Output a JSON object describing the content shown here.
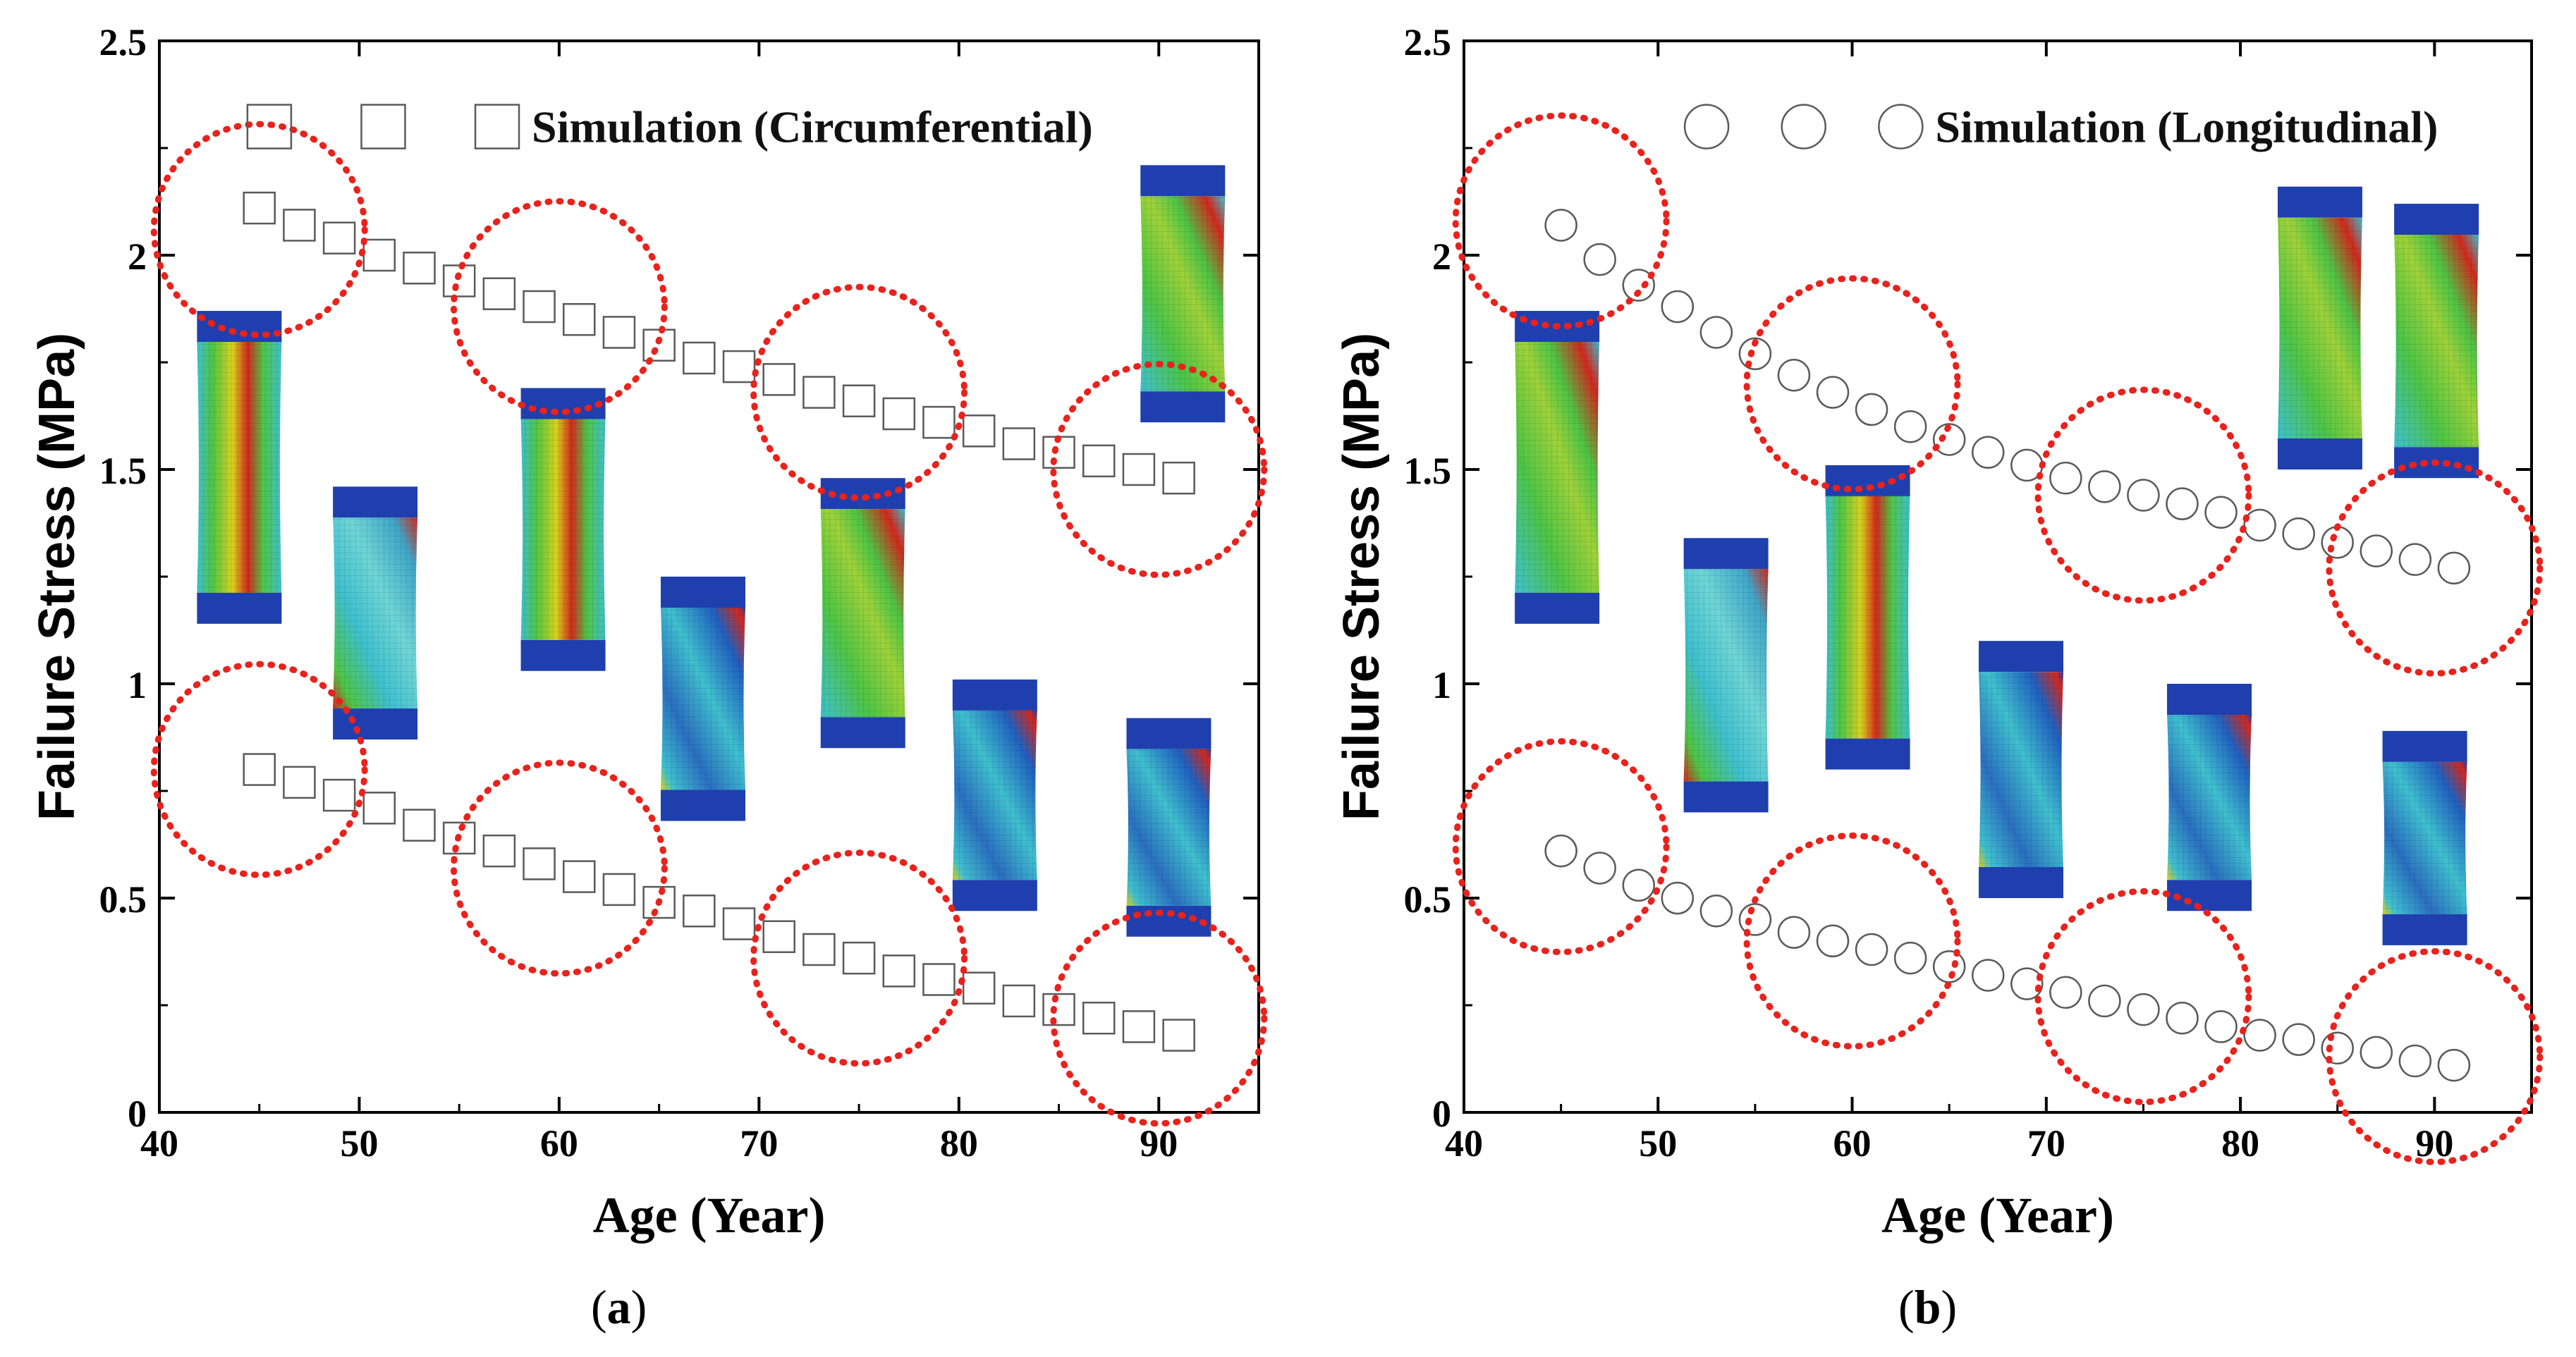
{
  "chart_data": [
    {
      "panel": "a",
      "type": "scatter",
      "xlabel": "Age (Year)",
      "ylabel": "Failure Stress (MPa)",
      "xlim": [
        40,
        95
      ],
      "ylim": [
        0,
        2.5
      ],
      "xticks": [
        40,
        50,
        60,
        70,
        80,
        90
      ],
      "yticks": [
        0,
        0.5,
        1,
        1.5,
        2,
        2.5
      ],
      "ytick_labels": [
        "0",
        "0.5",
        "1",
        "1.5",
        "2",
        "2.5"
      ],
      "legend": {
        "label": "Simulation (Circumferential)",
        "marker": "square",
        "position": "top"
      },
      "series": [
        {
          "marker": "square",
          "x": [
            45,
            47,
            49,
            51,
            53,
            55,
            57,
            59,
            61,
            63,
            65,
            67,
            69,
            71,
            73,
            75,
            77,
            79,
            81,
            83,
            85,
            87,
            89,
            91
          ],
          "y": [
            2.11,
            2.07,
            2.04,
            2.0,
            1.97,
            1.94,
            1.91,
            1.88,
            1.85,
            1.82,
            1.79,
            1.76,
            1.74,
            1.71,
            1.68,
            1.66,
            1.63,
            1.61,
            1.59,
            1.56,
            1.54,
            1.52,
            1.5,
            1.48
          ]
        },
        {
          "marker": "square",
          "x": [
            45,
            47,
            49,
            51,
            53,
            55,
            57,
            59,
            61,
            63,
            65,
            67,
            69,
            71,
            73,
            75,
            77,
            79,
            81,
            83,
            85,
            87,
            89,
            91
          ],
          "y": [
            0.8,
            0.77,
            0.74,
            0.71,
            0.67,
            0.64,
            0.61,
            0.58,
            0.55,
            0.52,
            0.49,
            0.47,
            0.44,
            0.41,
            0.38,
            0.36,
            0.33,
            0.31,
            0.29,
            0.26,
            0.24,
            0.22,
            0.2,
            0.18
          ]
        }
      ],
      "highlight_circles_x": [
        45,
        60,
        75,
        90
      ],
      "highlight_circles_y_upper": [
        2.06,
        1.88,
        1.68,
        1.5
      ],
      "highlight_circles_y_lower": [
        0.8,
        0.57,
        0.36,
        0.22
      ],
      "specimen_images": [
        {
          "x_center": 44.0,
          "y_top": 1.87,
          "y_bottom": 1.14,
          "pattern": "red"
        },
        {
          "x_center": 50.8,
          "y_top": 1.46,
          "y_bottom": 0.87,
          "pattern": "tilt"
        },
        {
          "x_center": 60.2,
          "y_top": 1.69,
          "y_bottom": 1.03,
          "pattern": "red"
        },
        {
          "x_center": 67.2,
          "y_top": 1.25,
          "y_bottom": 0.68,
          "pattern": "blue"
        },
        {
          "x_center": 75.2,
          "y_top": 1.48,
          "y_bottom": 0.85,
          "pattern": "redtilt"
        },
        {
          "x_center": 81.8,
          "y_top": 1.01,
          "y_bottom": 0.47,
          "pattern": "blue"
        },
        {
          "x_center": 91.2,
          "y_top": 2.21,
          "y_bottom": 1.61,
          "pattern": "redtilt"
        },
        {
          "x_center": 90.5,
          "y_top": 0.92,
          "y_bottom": 0.41,
          "pattern": "blue"
        }
      ]
    },
    {
      "panel": "b",
      "type": "scatter",
      "xlabel": "Age (Year)",
      "ylabel": "Failure Stress (MPa)",
      "xlim": [
        40,
        95
      ],
      "ylim": [
        0,
        2.5
      ],
      "xticks": [
        40,
        50,
        60,
        70,
        80,
        90
      ],
      "yticks": [
        0,
        0.5,
        1,
        1.5,
        2,
        2.5
      ],
      "ytick_labels": [
        "0",
        "0.5",
        "1",
        "1.5",
        "2",
        "2.5"
      ],
      "legend": {
        "label": "Simulation (Longitudinal)",
        "marker": "circle",
        "position": "top"
      },
      "series": [
        {
          "marker": "circle",
          "x": [
            45,
            47,
            49,
            51,
            53,
            55,
            57,
            59,
            61,
            63,
            65,
            67,
            69,
            71,
            73,
            75,
            77,
            79,
            81,
            83,
            85,
            87,
            89,
            91
          ],
          "y": [
            2.07,
            1.99,
            1.93,
            1.88,
            1.82,
            1.77,
            1.72,
            1.68,
            1.64,
            1.6,
            1.57,
            1.54,
            1.51,
            1.48,
            1.46,
            1.44,
            1.42,
            1.4,
            1.37,
            1.35,
            1.33,
            1.31,
            1.29,
            1.27
          ]
        },
        {
          "marker": "circle",
          "x": [
            45,
            47,
            49,
            51,
            53,
            55,
            57,
            59,
            61,
            63,
            65,
            67,
            69,
            71,
            73,
            75,
            77,
            79,
            81,
            83,
            85,
            87,
            89,
            91
          ],
          "y": [
            0.61,
            0.57,
            0.53,
            0.5,
            0.47,
            0.45,
            0.42,
            0.4,
            0.38,
            0.36,
            0.34,
            0.32,
            0.3,
            0.28,
            0.26,
            0.24,
            0.22,
            0.2,
            0.18,
            0.17,
            0.15,
            0.14,
            0.12,
            0.11
          ]
        }
      ],
      "highlight_circles_x": [
        45,
        60,
        75,
        90
      ],
      "highlight_circles_y_upper": [
        2.08,
        1.7,
        1.44,
        1.27
      ],
      "highlight_circles_y_lower": [
        0.62,
        0.4,
        0.27,
        0.13
      ],
      "specimen_images": [
        {
          "x_center": 44.8,
          "y_top": 1.87,
          "y_bottom": 1.14,
          "pattern": "redtilt"
        },
        {
          "x_center": 53.5,
          "y_top": 1.34,
          "y_bottom": 0.7,
          "pattern": "tilt"
        },
        {
          "x_center": 60.8,
          "y_top": 1.51,
          "y_bottom": 0.8,
          "pattern": "red"
        },
        {
          "x_center": 68.7,
          "y_top": 1.1,
          "y_bottom": 0.5,
          "pattern": "blue"
        },
        {
          "x_center": 78.4,
          "y_top": 1.0,
          "y_bottom": 0.47,
          "pattern": "blue"
        },
        {
          "x_center": 84.1,
          "y_top": 2.16,
          "y_bottom": 1.5,
          "pattern": "redtilt"
        },
        {
          "x_center": 90.1,
          "y_top": 2.12,
          "y_bottom": 1.48,
          "pattern": "redtilt"
        },
        {
          "x_center": 89.5,
          "y_top": 0.89,
          "y_bottom": 0.39,
          "pattern": "blue"
        }
      ]
    }
  ],
  "panel_labels": {
    "a": "a",
    "b": "b"
  },
  "colors": {
    "axis": "#000000",
    "marker_stroke": "#5a5a5a",
    "highlight": "#e8221c",
    "fem_blue": "#1f3fae",
    "fem_cyan": "#3fc0cf",
    "fem_green": "#4ec545",
    "fem_yellow": "#d8d21d",
    "fem_red": "#d1281d"
  }
}
